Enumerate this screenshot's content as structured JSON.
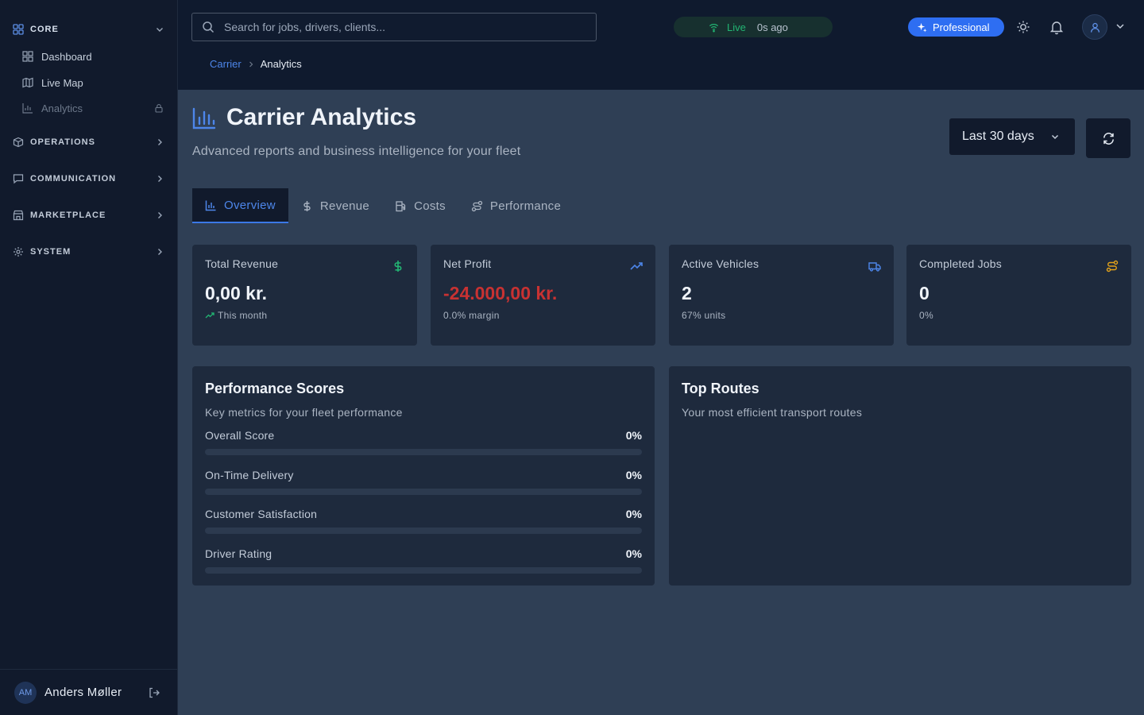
{
  "sidebar": {
    "groups": [
      {
        "label": "CORE",
        "icon": "grid-icon",
        "expanded": true
      },
      {
        "label": "OPERATIONS",
        "icon": "box-icon",
        "expanded": false
      },
      {
        "label": "COMMUNICATION",
        "icon": "chat-icon",
        "expanded": false
      },
      {
        "label": "MARKETPLACE",
        "icon": "store-icon",
        "expanded": false
      },
      {
        "label": "SYSTEM",
        "icon": "gear-icon",
        "expanded": false
      }
    ],
    "core_items": [
      {
        "label": "Dashboard",
        "icon": "dashboard-icon",
        "locked": false
      },
      {
        "label": "Live Map",
        "icon": "map-icon",
        "locked": false
      },
      {
        "label": "Analytics",
        "icon": "bar-chart-icon",
        "locked": true
      }
    ],
    "user": {
      "initials": "AM",
      "name": "Anders Møller"
    }
  },
  "topbar": {
    "search_placeholder": "Search for jobs, drivers, clients...",
    "live_label": "Live",
    "live_ago": "0s ago",
    "plan_badge": "Professional",
    "breadcrumb": {
      "parent": "Carrier",
      "current": "Analytics"
    }
  },
  "page": {
    "title": "Carrier Analytics",
    "subtitle": "Advanced reports and business intelligence for your fleet",
    "range": "Last 30 days"
  },
  "tabs": [
    {
      "label": "Overview",
      "icon": "bar-chart-icon",
      "active": true
    },
    {
      "label": "Revenue",
      "icon": "dollar-icon",
      "active": false
    },
    {
      "label": "Costs",
      "icon": "fuel-icon",
      "active": false
    },
    {
      "label": "Performance",
      "icon": "route-icon",
      "active": false
    }
  ],
  "stats": [
    {
      "label": "Total Revenue",
      "value": "0,00 kr.",
      "sub": "This month",
      "icon": "dollar-icon",
      "icon_color": "#22b573"
    },
    {
      "label": "Net Profit",
      "value": "-24.000,00 kr.",
      "sub": "0.0% margin",
      "icon": "trending-up-icon",
      "icon_color": "#4d86ea"
    },
    {
      "label": "Active Vehicles",
      "value": "2",
      "sub": "67% units",
      "icon": "truck-icon",
      "icon_color": "#4d86ea"
    },
    {
      "label": "Completed Jobs",
      "value": "0",
      "sub": "0%",
      "icon": "route-icon",
      "icon_color": "#e3a21a"
    }
  ],
  "performance": {
    "title": "Performance Scores",
    "subtitle": "Key metrics for your fleet performance",
    "metrics": [
      {
        "label": "Overall Score",
        "value": "0%",
        "fraction": 0
      },
      {
        "label": "On-Time Delivery",
        "value": "0%",
        "fraction": 0
      },
      {
        "label": "Customer Satisfaction",
        "value": "0%",
        "fraction": 0
      },
      {
        "label": "Driver Rating",
        "value": "0%",
        "fraction": 0
      }
    ]
  },
  "routes": {
    "title": "Top Routes",
    "subtitle": "Your most efficient transport routes"
  },
  "colors": {
    "accent": "#3b78e7",
    "negative": "#c83232",
    "positive": "#22b573",
    "warning": "#e3a21a"
  }
}
